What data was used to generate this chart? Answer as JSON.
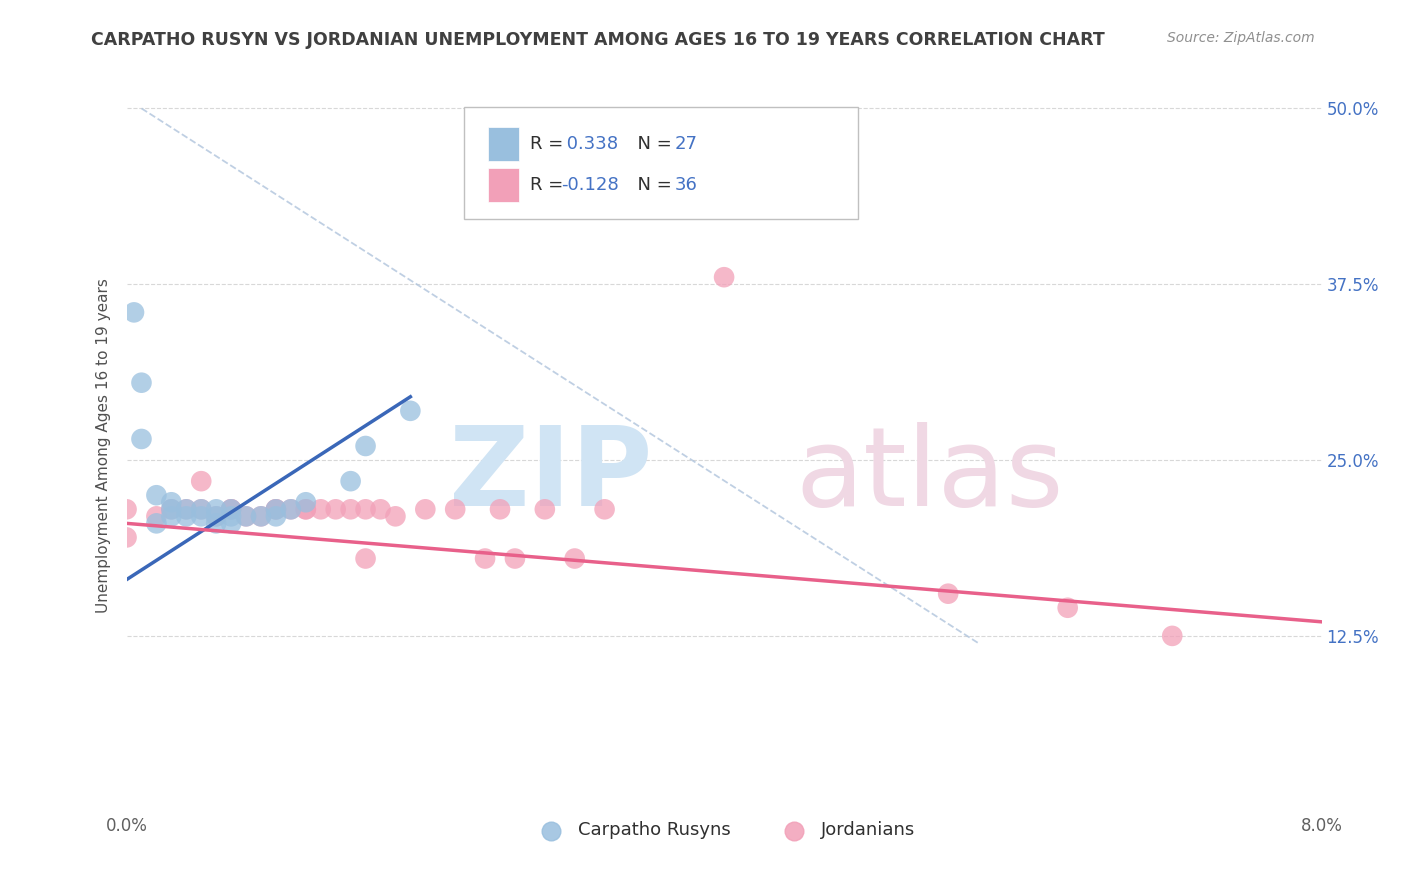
{
  "title": "CARPATHO RUSYN VS JORDANIAN UNEMPLOYMENT AMONG AGES 16 TO 19 YEARS CORRELATION CHART",
  "source": "Source: ZipAtlas.com",
  "ylabel": "Unemployment Among Ages 16 to 19 years",
  "xlim": [
    0.0,
    0.08
  ],
  "ylim": [
    0.0,
    0.52
  ],
  "xticks": [
    0.0,
    0.02,
    0.04,
    0.06,
    0.08
  ],
  "xticklabels": [
    "0.0%",
    "",
    "",
    "",
    "8.0%"
  ],
  "yticks": [
    0.0,
    0.125,
    0.25,
    0.375,
    0.5
  ],
  "yticklabels_right": [
    "",
    "12.5%",
    "25.0%",
    "37.5%",
    "50.0%"
  ],
  "carpatho_rusyns": {
    "x": [
      0.0005,
      0.001,
      0.001,
      0.002,
      0.002,
      0.003,
      0.003,
      0.003,
      0.004,
      0.004,
      0.005,
      0.005,
      0.006,
      0.006,
      0.006,
      0.007,
      0.007,
      0.007,
      0.008,
      0.009,
      0.01,
      0.01,
      0.011,
      0.012,
      0.015,
      0.016,
      0.019
    ],
    "y": [
      0.355,
      0.305,
      0.265,
      0.225,
      0.205,
      0.22,
      0.215,
      0.21,
      0.215,
      0.21,
      0.215,
      0.21,
      0.215,
      0.21,
      0.205,
      0.215,
      0.21,
      0.205,
      0.21,
      0.21,
      0.215,
      0.21,
      0.215,
      0.22,
      0.235,
      0.26,
      0.285
    ],
    "color": "#99bfde",
    "R": 0.338,
    "N": 27,
    "line_color": "#3a67b8",
    "line_x": [
      0.0,
      0.019
    ],
    "line_y": [
      0.165,
      0.295
    ]
  },
  "jordanians": {
    "x": [
      0.0,
      0.0,
      0.002,
      0.003,
      0.004,
      0.005,
      0.005,
      0.006,
      0.007,
      0.007,
      0.008,
      0.009,
      0.01,
      0.01,
      0.011,
      0.012,
      0.012,
      0.013,
      0.014,
      0.015,
      0.016,
      0.016,
      0.017,
      0.018,
      0.02,
      0.022,
      0.024,
      0.025,
      0.026,
      0.028,
      0.03,
      0.032,
      0.04,
      0.055,
      0.063,
      0.07
    ],
    "y": [
      0.195,
      0.215,
      0.21,
      0.215,
      0.215,
      0.215,
      0.235,
      0.21,
      0.215,
      0.215,
      0.21,
      0.21,
      0.215,
      0.215,
      0.215,
      0.215,
      0.215,
      0.215,
      0.215,
      0.215,
      0.18,
      0.215,
      0.215,
      0.21,
      0.215,
      0.215,
      0.18,
      0.215,
      0.18,
      0.215,
      0.18,
      0.215,
      0.38,
      0.155,
      0.145,
      0.125
    ],
    "color": "#f2a0b8",
    "R": -0.128,
    "N": 36,
    "line_color": "#e8608a",
    "line_x": [
      0.0,
      0.08
    ],
    "line_y": [
      0.205,
      0.135
    ]
  },
  "dashed_line": {
    "x": [
      0.001,
      0.057
    ],
    "y": [
      0.5,
      0.12
    ],
    "color": "#b0c4dc"
  },
  "watermark_zip_color": "#d0e4f4",
  "watermark_atlas_color": "#f0d8e4",
  "background_color": "#ffffff",
  "grid_h_color": "#d8d8d8",
  "grid_h_style": "--",
  "title_color": "#404040",
  "source_color": "#909090",
  "ylabel_color": "#505050",
  "axis_label_color": "#606060",
  "right_tick_color": "#4472C4",
  "legend_border_color": "#c0c0c0",
  "legend_R_N_color": "#4472C4",
  "legend_text_color": "#303030"
}
